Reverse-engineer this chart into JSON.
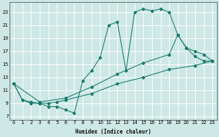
{
  "xlabel": "Humidex (Indice chaleur)",
  "ylabel": "",
  "bg_color": "#cde8e5",
  "line_color": "#1a7a6e",
  "grid_color": "#ffffff",
  "xlim": [
    -0.5,
    23.5
  ],
  "ylim": [
    6.5,
    24.5
  ],
  "xticks": [
    0,
    1,
    2,
    3,
    4,
    5,
    6,
    7,
    8,
    9,
    10,
    11,
    12,
    13,
    14,
    15,
    16,
    17,
    18,
    19,
    20,
    21,
    22,
    23
  ],
  "yticks": [
    7,
    9,
    11,
    13,
    15,
    17,
    19,
    21,
    23
  ],
  "line1_x": [
    0,
    1,
    2,
    3,
    4,
    5,
    6,
    7,
    8,
    9,
    10,
    11,
    12,
    13,
    14,
    15,
    16,
    17,
    18,
    19,
    20,
    21,
    22,
    23
  ],
  "line1_y": [
    12.0,
    9.5,
    9.0,
    9.0,
    8.5,
    8.5,
    8.0,
    7.5,
    12.5,
    14.0,
    16.0,
    21.0,
    21.5,
    14.0,
    23.0,
    23.5,
    23.2,
    23.5,
    23.0,
    19.5,
    17.5,
    16.2,
    15.5,
    15.5
  ],
  "line2_x": [
    0,
    1,
    2,
    3,
    4,
    5,
    6,
    9,
    12,
    15,
    18,
    21,
    23
  ],
  "line2_y": [
    12.0,
    9.5,
    9.2,
    9.0,
    9.0,
    9.2,
    9.5,
    10.5,
    12.0,
    13.0,
    14.2,
    14.8,
    15.5
  ],
  "line3_x": [
    0,
    3,
    6,
    9,
    12,
    15,
    18,
    19,
    20,
    21,
    22,
    23
  ],
  "line3_y": [
    12.0,
    9.2,
    9.8,
    11.5,
    13.5,
    15.2,
    16.5,
    19.5,
    17.5,
    17.0,
    16.5,
    15.5
  ]
}
